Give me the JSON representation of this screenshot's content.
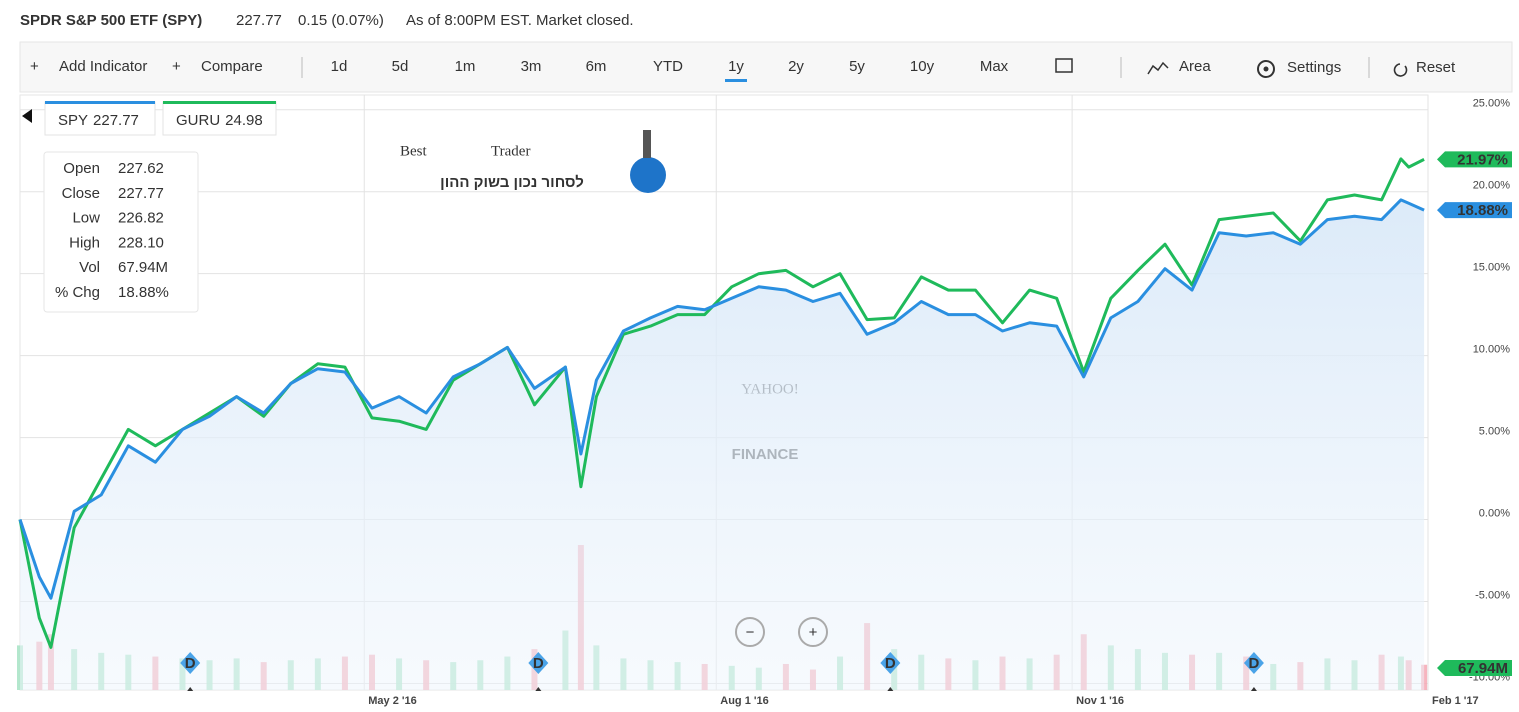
{
  "header": {
    "title": "SPDR S&P 500 ETF (SPY)",
    "price": "227.77",
    "change": "0.15 (0.07%)",
    "status": "As of 8:00PM EST. Market closed."
  },
  "toolbar": {
    "add_indicator": "Add Indicator",
    "compare": "Compare",
    "ranges": [
      "1d",
      "5d",
      "1m",
      "3m",
      "6m",
      "YTD",
      "1y",
      "2y",
      "5y",
      "10y",
      "Max"
    ],
    "selected": "1y",
    "chart_type": "Area",
    "settings": "Settings",
    "reset": "Reset"
  },
  "logo": {
    "best": "Best",
    "trader": "Trader",
    "tagline": "לסחור נכון בשוק ההון"
  },
  "watermark": {
    "line1": "YAHOO!",
    "line2": "FINANCE"
  },
  "tooltip": [
    {
      "label": "Open",
      "value": "227.62"
    },
    {
      "label": "Close",
      "value": "227.77"
    },
    {
      "label": "Low",
      "value": "226.82"
    },
    {
      "label": "High",
      "value": "228.10"
    },
    {
      "label": "Vol",
      "value": "67.94M"
    },
    {
      "label": "% Chg",
      "value": "18.88%"
    }
  ],
  "chart_data": {
    "type": "area",
    "grid": true,
    "x": [
      "2016-02-03",
      "2016-02-08",
      "2016-02-11",
      "2016-02-17",
      "2016-02-24",
      "2016-03-02",
      "2016-03-09",
      "2016-03-16",
      "2016-03-23",
      "2016-03-30",
      "2016-04-06",
      "2016-04-13",
      "2016-04-20",
      "2016-04-27",
      "2016-05-04",
      "2016-05-11",
      "2016-05-18",
      "2016-05-25",
      "2016-06-01",
      "2016-06-08",
      "2016-06-15",
      "2016-06-23",
      "2016-06-27",
      "2016-07-01",
      "2016-07-08",
      "2016-07-15",
      "2016-07-22",
      "2016-07-29",
      "2016-08-05",
      "2016-08-12",
      "2016-08-19",
      "2016-08-26",
      "2016-09-02",
      "2016-09-09",
      "2016-09-16",
      "2016-09-23",
      "2016-09-30",
      "2016-10-07",
      "2016-10-14",
      "2016-10-21",
      "2016-10-28",
      "2016-11-04",
      "2016-11-11",
      "2016-11-18",
      "2016-11-25",
      "2016-12-02",
      "2016-12-09",
      "2016-12-16",
      "2016-12-23",
      "2016-12-30",
      "2017-01-06",
      "2017-01-13",
      "2017-01-20",
      "2017-01-25",
      "2017-01-27",
      "2017-01-31"
    ],
    "xlim": [
      "2016-02-03",
      "2017-02-01"
    ],
    "xticks": [
      {
        "value": "2016-05-02",
        "label": "May 2 '16"
      },
      {
        "value": "2016-08-01",
        "label": "Aug 1 '16"
      },
      {
        "value": "2016-11-01",
        "label": "Nov 1 '16"
      },
      {
        "value": "2017-02-01",
        "label": "Feb 1 '17"
      }
    ],
    "ylim": [
      -10.4,
      25.9
    ],
    "yticks": [
      {
        "value": 25,
        "label": "25.00%"
      },
      {
        "value": 20,
        "label": "20.00%"
      },
      {
        "value": 15,
        "label": "15.00%"
      },
      {
        "value": 10,
        "label": "10.00%"
      },
      {
        "value": 5,
        "label": "5.00%"
      },
      {
        "value": 0,
        "label": "0.00%"
      },
      {
        "value": -5,
        "label": "-5.00%"
      },
      {
        "value": -10,
        "label": "-10.00%"
      }
    ],
    "series": [
      {
        "name": "SPY",
        "price": "227.77",
        "color": "#2a8fe0",
        "last_label": "18.88%",
        "values": [
          0,
          -3.5,
          -4.8,
          0.5,
          1.5,
          4.5,
          3.5,
          5.5,
          6.3,
          7.5,
          6.5,
          8.3,
          9.2,
          9.0,
          6.8,
          7.5,
          6.5,
          8.7,
          9.5,
          10.5,
          8.0,
          9.3,
          4.0,
          8.5,
          11.5,
          12.3,
          13.0,
          12.8,
          13.5,
          14.2,
          14.0,
          13.3,
          13.8,
          11.3,
          12.0,
          13.3,
          12.5,
          12.5,
          11.5,
          12.0,
          11.8,
          8.7,
          12.3,
          13.3,
          15.3,
          14.0,
          17.5,
          17.3,
          17.5,
          16.8,
          18.3,
          18.5,
          18.3,
          19.5,
          19.3,
          18.88
        ]
      },
      {
        "name": "GURU",
        "price": "24.98",
        "color": "#1fba5b",
        "last_label": "21.97%",
        "values": [
          0,
          -6,
          -7.8,
          -0.5,
          2.5,
          5.5,
          4.5,
          5.5,
          6.5,
          7.5,
          6.3,
          8.3,
          9.5,
          9.3,
          6.2,
          6.0,
          5.5,
          8.5,
          9.5,
          10.5,
          7.0,
          9.3,
          2.0,
          7.5,
          11.3,
          11.8,
          12.5,
          12.5,
          14.2,
          15.0,
          15.2,
          14.2,
          15.0,
          12.2,
          12.3,
          14.8,
          14.0,
          14.0,
          12.0,
          14.0,
          13.5,
          9.0,
          13.5,
          15.2,
          16.8,
          14.3,
          18.3,
          18.5,
          18.7,
          17.0,
          19.5,
          19.8,
          19.5,
          22.0,
          21.5,
          21.97
        ]
      }
    ],
    "volume": [
      120,
      130,
      150,
      110,
      100,
      95,
      90,
      85,
      80,
      85,
      75,
      80,
      85,
      90,
      95,
      85,
      80,
      75,
      80,
      90,
      110,
      160,
      390,
      120,
      85,
      80,
      75,
      70,
      65,
      60,
      70,
      55,
      90,
      180,
      110,
      95,
      85,
      80,
      90,
      85,
      95,
      150,
      120,
      110,
      100,
      95,
      100,
      90,
      70,
      75,
      85,
      80,
      95,
      90,
      80,
      67.94
    ],
    "volume_label": "67.94M",
    "events": [
      {
        "date": "2016-03-18",
        "label": "D"
      },
      {
        "date": "2016-06-16",
        "label": "D"
      },
      {
        "date": "2016-09-15",
        "label": "D"
      },
      {
        "date": "2016-12-18",
        "label": "D"
      }
    ]
  }
}
